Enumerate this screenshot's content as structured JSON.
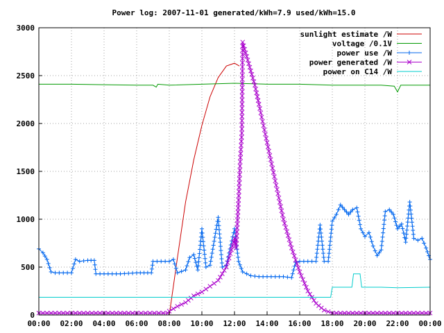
{
  "chart_data": {
    "type": "line",
    "title": "Power log: 2007-11-01 generated/kWh=7.9 used/kWh=15.0",
    "xlabel": "",
    "ylabel": "",
    "x_ticks": [
      "00:00",
      "02:00",
      "04:00",
      "06:00",
      "08:00",
      "10:00",
      "12:00",
      "14:00",
      "16:00",
      "18:00",
      "20:00",
      "22:00",
      "00:00"
    ],
    "y_ticks": [
      "0",
      "500",
      "1000",
      "1500",
      "2000",
      "2500",
      "3000"
    ],
    "xlim_hours": [
      0,
      24
    ],
    "ylim": [
      0,
      3000
    ],
    "grid": true,
    "legend_position": "top-right",
    "series": [
      {
        "name": "sunlight estimate /W",
        "color": "#cc0000",
        "marker": "none",
        "points": [
          [
            8.0,
            0
          ],
          [
            8.5,
            600
          ],
          [
            9.0,
            1180
          ],
          [
            9.5,
            1620
          ],
          [
            10.0,
            1980
          ],
          [
            10.5,
            2280
          ],
          [
            11.0,
            2480
          ],
          [
            11.5,
            2600
          ],
          [
            12.0,
            2630
          ],
          [
            12.3,
            2600
          ]
        ]
      },
      {
        "name": "voltage /0.1V",
        "color": "#009900",
        "marker": "none",
        "points": [
          [
            0,
            2410
          ],
          [
            2,
            2410
          ],
          [
            4,
            2405
          ],
          [
            6,
            2400
          ],
          [
            7,
            2400
          ],
          [
            7.2,
            2380
          ],
          [
            7.3,
            2410
          ],
          [
            8,
            2400
          ],
          [
            10,
            2410
          ],
          [
            12,
            2420
          ],
          [
            14,
            2410
          ],
          [
            16,
            2410
          ],
          [
            18,
            2400
          ],
          [
            20,
            2400
          ],
          [
            21,
            2400
          ],
          [
            21.8,
            2390
          ],
          [
            22,
            2330
          ],
          [
            22.2,
            2400
          ],
          [
            24,
            2400
          ]
        ]
      },
      {
        "name": "power use /W",
        "color": "#0066ee",
        "marker": "plus",
        "points": [
          [
            0,
            690
          ],
          [
            0.25,
            650
          ],
          [
            0.5,
            580
          ],
          [
            0.75,
            450
          ],
          [
            1,
            440
          ],
          [
            1.5,
            440
          ],
          [
            2,
            440
          ],
          [
            2.25,
            580
          ],
          [
            2.5,
            560
          ],
          [
            3,
            570
          ],
          [
            3.4,
            570
          ],
          [
            3.5,
            430
          ],
          [
            4,
            430
          ],
          [
            5,
            430
          ],
          [
            6,
            440
          ],
          [
            6.9,
            440
          ],
          [
            7.0,
            560
          ],
          [
            7.5,
            560
          ],
          [
            8.0,
            560
          ],
          [
            8.25,
            580
          ],
          [
            8.5,
            440
          ],
          [
            9.0,
            470
          ],
          [
            9.25,
            600
          ],
          [
            9.5,
            630
          ],
          [
            9.75,
            470
          ],
          [
            10.0,
            900
          ],
          [
            10.25,
            500
          ],
          [
            10.5,
            520
          ],
          [
            11.0,
            1020
          ],
          [
            11.25,
            500
          ],
          [
            11.5,
            520
          ],
          [
            12.0,
            900
          ],
          [
            12.25,
            560
          ],
          [
            12.5,
            450
          ],
          [
            13.0,
            410
          ],
          [
            13.5,
            400
          ],
          [
            14.0,
            400
          ],
          [
            14.5,
            400
          ],
          [
            15.0,
            400
          ],
          [
            15.5,
            390
          ],
          [
            15.75,
            550
          ],
          [
            16.0,
            560
          ],
          [
            16.5,
            560
          ],
          [
            17.0,
            560
          ],
          [
            17.25,
            940
          ],
          [
            17.5,
            560
          ],
          [
            17.75,
            560
          ],
          [
            18.0,
            980
          ],
          [
            18.25,
            1050
          ],
          [
            18.5,
            1150
          ],
          [
            18.75,
            1100
          ],
          [
            19.0,
            1050
          ],
          [
            19.25,
            1100
          ],
          [
            19.5,
            1120
          ],
          [
            19.75,
            900
          ],
          [
            20.0,
            820
          ],
          [
            20.25,
            860
          ],
          [
            20.5,
            720
          ],
          [
            20.75,
            620
          ],
          [
            21.0,
            680
          ],
          [
            21.25,
            1080
          ],
          [
            21.5,
            1100
          ],
          [
            21.75,
            1050
          ],
          [
            22.0,
            900
          ],
          [
            22.25,
            950
          ],
          [
            22.5,
            760
          ],
          [
            22.75,
            1180
          ],
          [
            23.0,
            800
          ],
          [
            23.25,
            780
          ],
          [
            23.5,
            800
          ],
          [
            23.75,
            700
          ],
          [
            24,
            580
          ]
        ]
      },
      {
        "name": "power generated /W",
        "color": "#aa00cc",
        "marker": "cross",
        "points": [
          [
            0,
            20
          ],
          [
            2,
            20
          ],
          [
            4,
            20
          ],
          [
            6,
            20
          ],
          [
            7.9,
            20
          ],
          [
            8.0,
            40
          ],
          [
            8.5,
            90
          ],
          [
            9.0,
            130
          ],
          [
            9.5,
            200
          ],
          [
            10.0,
            240
          ],
          [
            10.5,
            300
          ],
          [
            11.0,
            360
          ],
          [
            11.5,
            500
          ],
          [
            11.75,
            640
          ],
          [
            12.0,
            800
          ],
          [
            12.1,
            700
          ],
          [
            12.25,
            1200
          ],
          [
            12.35,
            1600
          ],
          [
            12.45,
            1900
          ],
          [
            12.5,
            2850
          ],
          [
            12.75,
            2700
          ],
          [
            13.0,
            2550
          ],
          [
            13.25,
            2400
          ],
          [
            13.5,
            2200
          ],
          [
            14.0,
            1800
          ],
          [
            14.5,
            1400
          ],
          [
            15.0,
            1000
          ],
          [
            15.5,
            700
          ],
          [
            16.0,
            450
          ],
          [
            16.5,
            250
          ],
          [
            17.0,
            120
          ],
          [
            17.5,
            50
          ],
          [
            18.0,
            20
          ],
          [
            20,
            20
          ],
          [
            22,
            20
          ],
          [
            24,
            20
          ]
        ]
      },
      {
        "name": "power on C14 /W",
        "color": "#00cccc",
        "marker": "none",
        "points": [
          [
            0,
            185
          ],
          [
            4,
            185
          ],
          [
            8,
            185
          ],
          [
            12,
            185
          ],
          [
            16,
            185
          ],
          [
            17.9,
            185
          ],
          [
            18.0,
            290
          ],
          [
            19.0,
            290
          ],
          [
            19.2,
            290
          ],
          [
            19.3,
            430
          ],
          [
            19.7,
            430
          ],
          [
            19.8,
            290
          ],
          [
            21,
            290
          ],
          [
            22,
            285
          ],
          [
            24,
            290
          ]
        ]
      }
    ]
  }
}
